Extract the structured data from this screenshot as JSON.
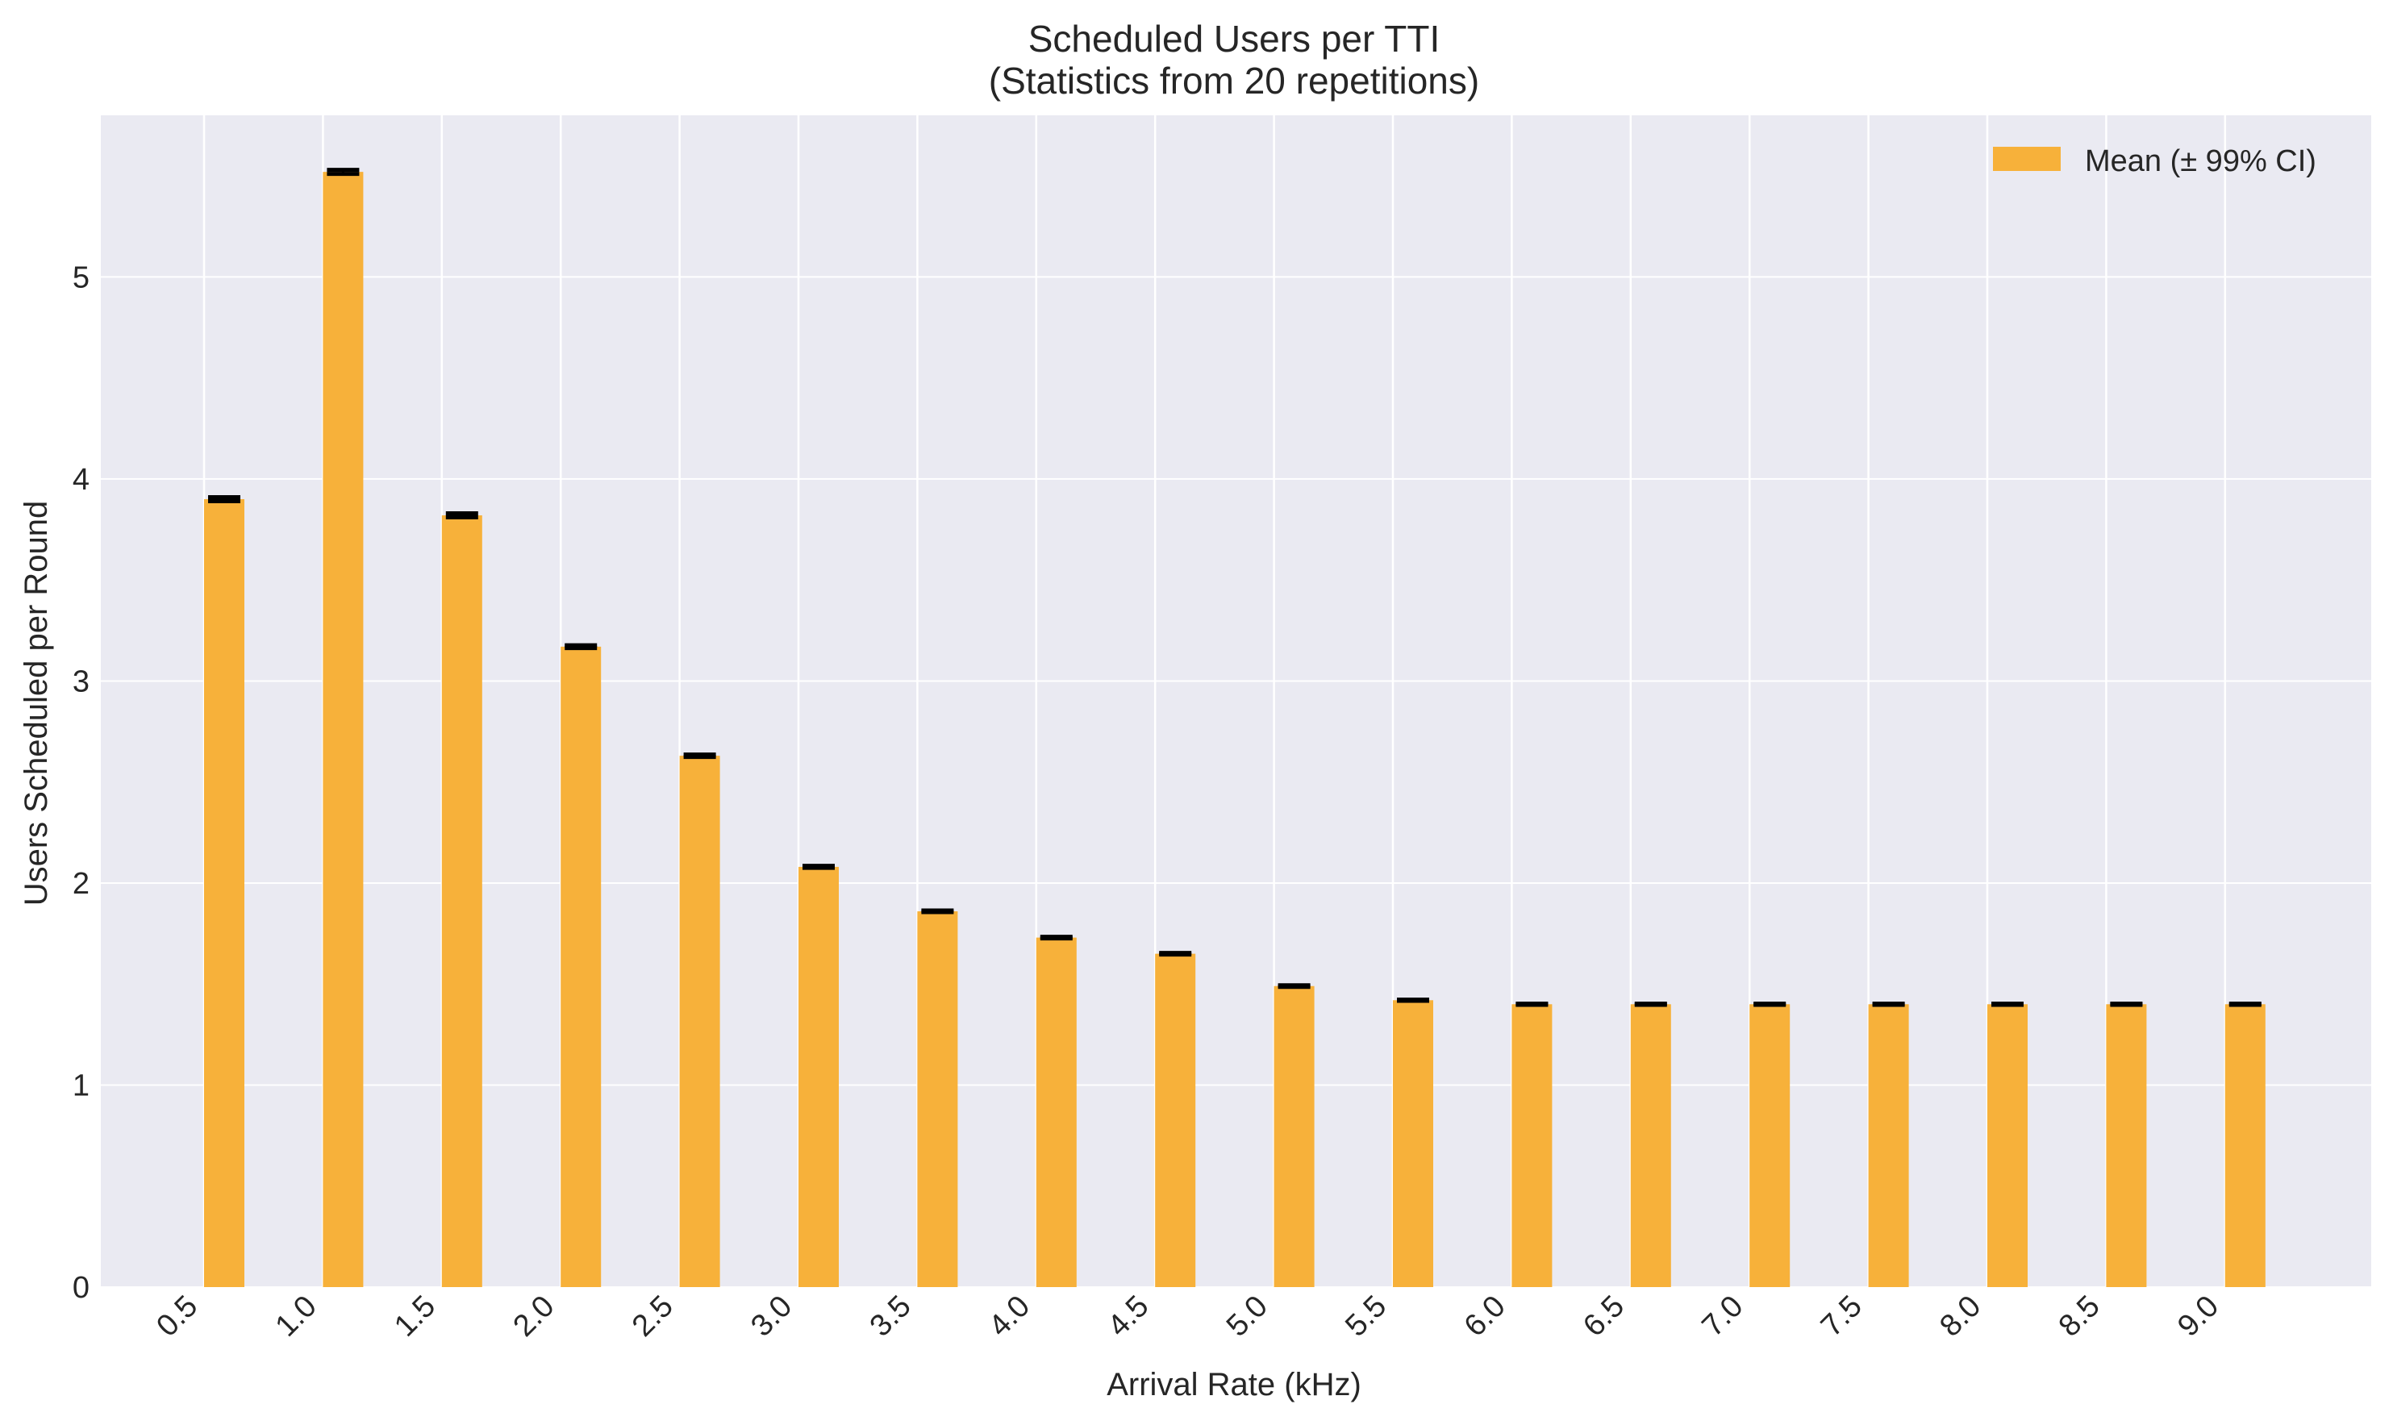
{
  "chart_data": {
    "type": "bar",
    "title": "Scheduled Users per TTI",
    "subtitle": "(Statistics from 20 repetitions)",
    "xlabel": "Arrival Rate (kHz)",
    "ylabel": "Users Scheduled per Round",
    "categories": [
      "0.5",
      "1.0",
      "1.5",
      "2.0",
      "2.5",
      "3.0",
      "3.5",
      "4.0",
      "4.5",
      "5.0",
      "5.5",
      "6.0",
      "6.5",
      "7.0",
      "7.5",
      "8.0",
      "8.5",
      "9.0"
    ],
    "series": [
      {
        "name": "Mean (± 99% CI)",
        "color": "#f7b13a",
        "values": [
          3.9,
          5.52,
          3.82,
          3.17,
          2.63,
          2.08,
          1.86,
          1.73,
          1.65,
          1.49,
          1.42,
          1.4,
          1.4,
          1.4,
          1.4,
          1.4,
          1.4,
          1.4
        ],
        "ci_half_width": [
          0.01,
          0.01,
          0.01,
          0.007,
          0.006,
          0.005,
          0.004,
          0.004,
          0.004,
          0.004,
          0.003,
          0.003,
          0.003,
          0.003,
          0.003,
          0.003,
          0.003,
          0.003
        ]
      }
    ],
    "yticks": [
      0,
      1,
      2,
      3,
      4,
      5
    ],
    "ylim": [
      0,
      5.8
    ],
    "grid": true,
    "legend_position": "top-right",
    "colors": {
      "plot_background": "#eaeaf2",
      "grid": "#ffffff",
      "error_bar": "#000000"
    }
  }
}
